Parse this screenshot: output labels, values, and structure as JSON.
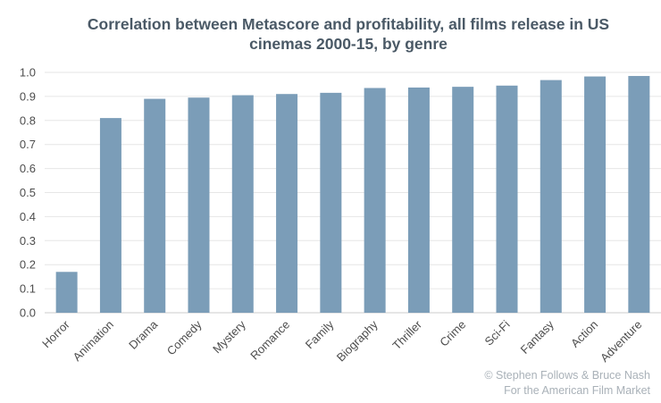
{
  "chart_data": {
    "type": "bar",
    "title_line1": "Correlation between Metascore and profitability, all films release in US",
    "title_line2": "cinemas 2000-15, by genre",
    "categories": [
      "Horror",
      "Animation",
      "Drama",
      "Comedy",
      "Mystery",
      "Romance",
      "Family",
      "Biography",
      "Thriller",
      "Crime",
      "Sci-Fi",
      "Fantasy",
      "Action",
      "Adventure"
    ],
    "values": [
      0.17,
      0.81,
      0.89,
      0.895,
      0.905,
      0.91,
      0.915,
      0.935,
      0.937,
      0.94,
      0.945,
      0.968,
      0.983,
      0.985
    ],
    "y_ticks": [
      "0.0",
      "0.1",
      "0.2",
      "0.3",
      "0.4",
      "0.5",
      "0.6",
      "0.7",
      "0.8",
      "0.9",
      "1.0"
    ],
    "ylim": [
      0,
      1.0
    ],
    "xlabel": "",
    "ylabel": "",
    "grid": true,
    "legend": "none"
  },
  "colors": {
    "bar": "#7b9db8",
    "grid": "#e6e6e6",
    "axis": "#cccccc",
    "tick_label": "#4d4d4d",
    "title": "#4a5966",
    "credit": "#a9b1b8"
  },
  "credit": {
    "line1": "© Stephen Follows & Bruce Nash",
    "line2": "For the American Film Market"
  }
}
